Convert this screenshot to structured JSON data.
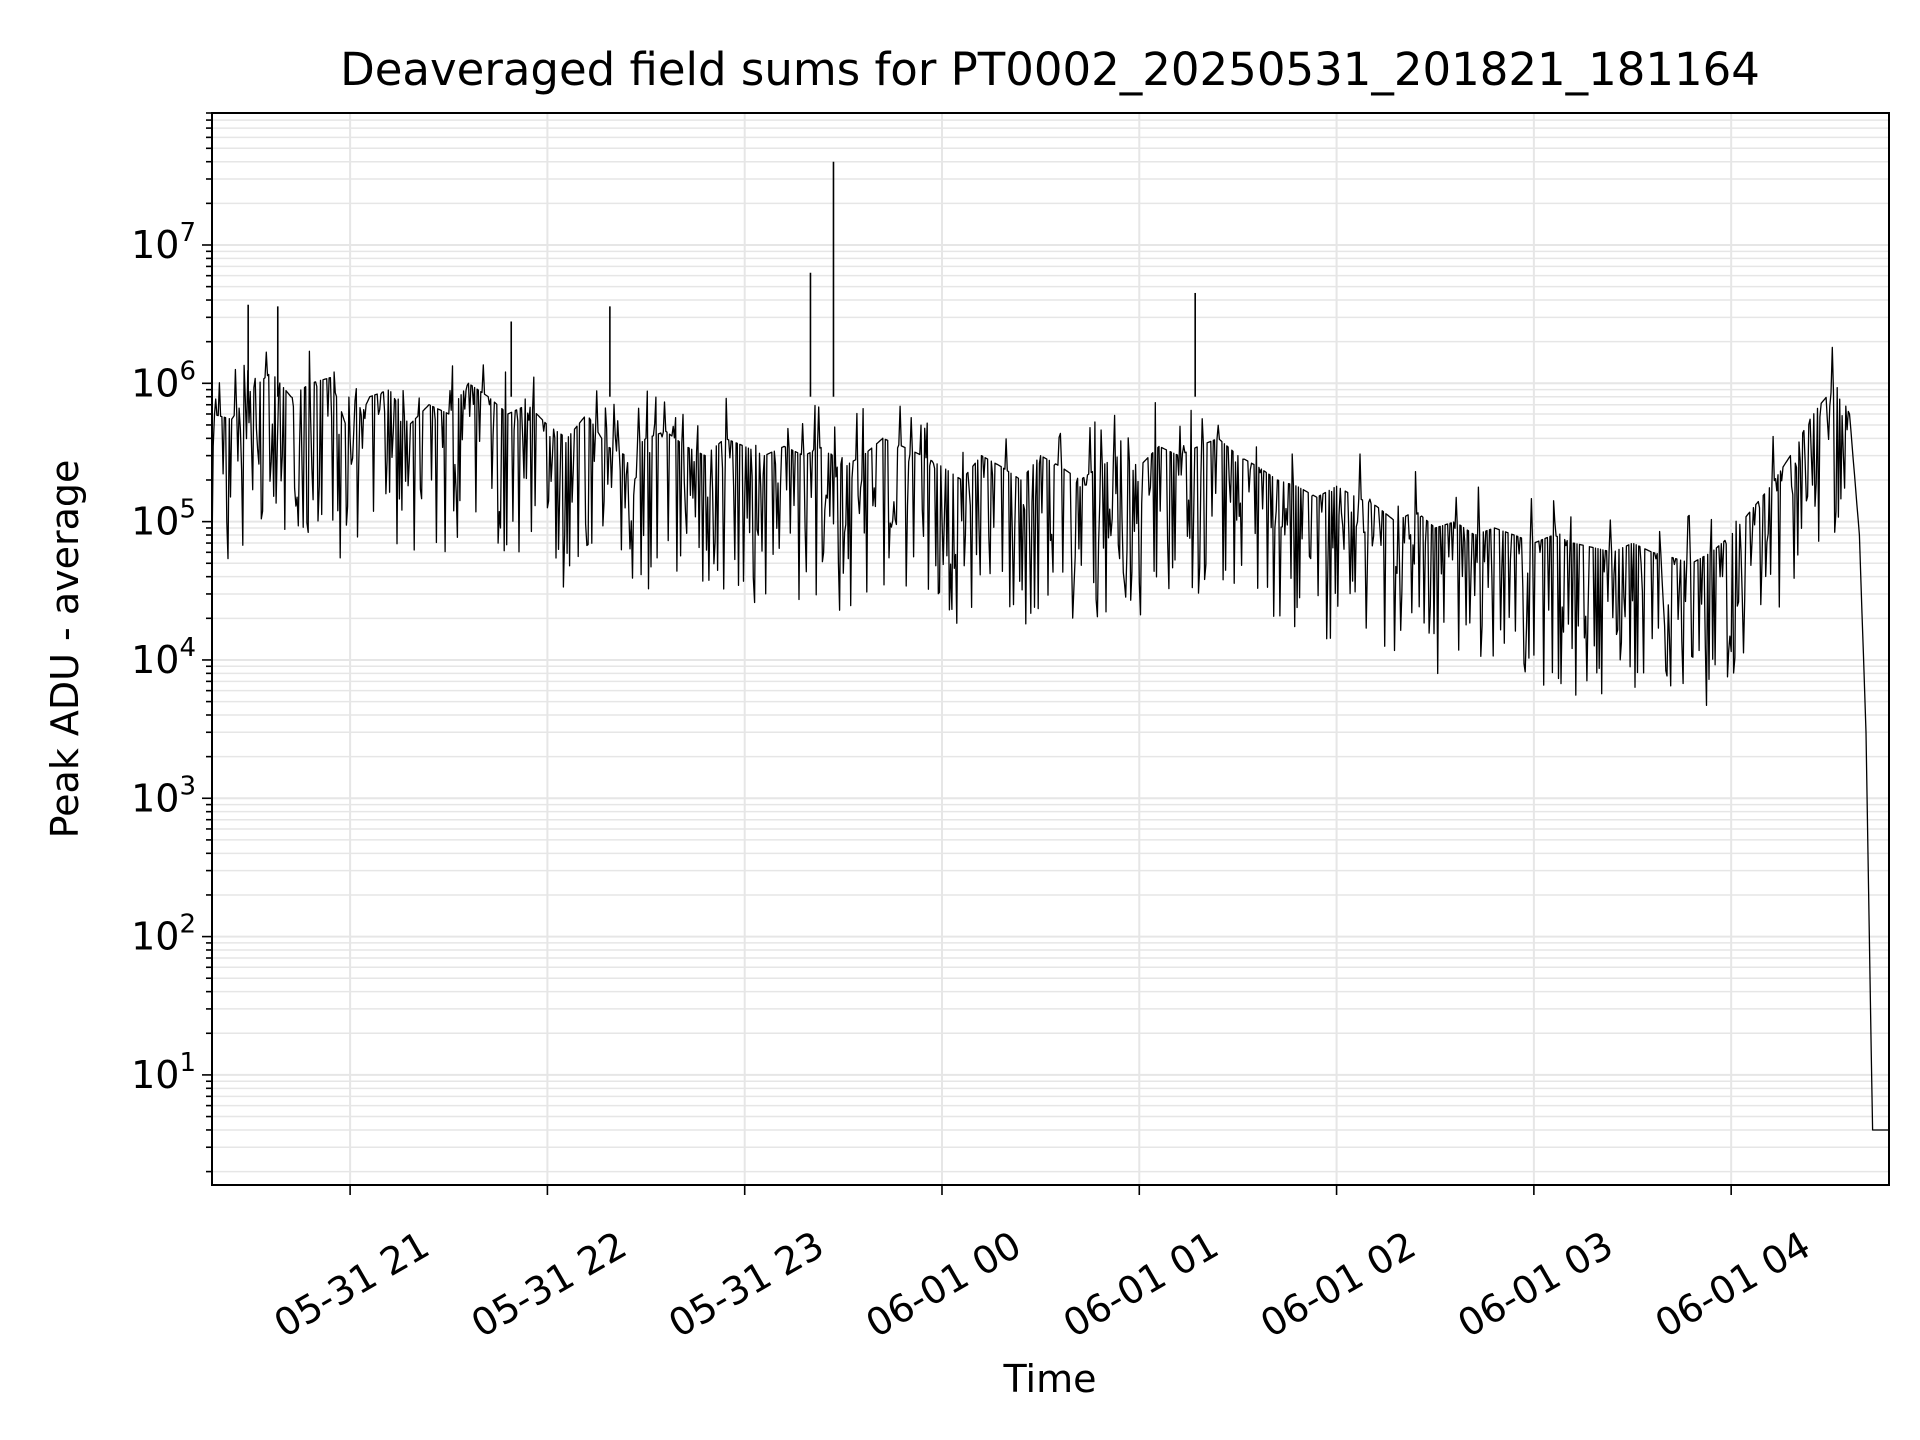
{
  "chart_data": {
    "type": "line",
    "title": "Deaveraged field sums for PT0002_20250531_201821_181164",
    "xlabel": "Time",
    "ylabel": "Peak ADU - average",
    "yscale": "log",
    "ylim": [
      1.6,
      90000000
    ],
    "xlim": [
      "2025-05-31 20:18",
      "2025-06-01 04:48"
    ],
    "grid": "on (major and minor)",
    "line_color": "#000000",
    "grid_color": "#e6e6e6",
    "x_ticks": [
      {
        "value": "2025-05-31 21:00",
        "label": "05-31 21"
      },
      {
        "value": "2025-05-31 22:00",
        "label": "05-31 22"
      },
      {
        "value": "2025-05-31 23:00",
        "label": "05-31 23"
      },
      {
        "value": "2025-06-01 00:00",
        "label": "06-01 00"
      },
      {
        "value": "2025-06-01 01:00",
        "label": "06-01 01"
      },
      {
        "value": "2025-06-01 02:00",
        "label": "06-01 02"
      },
      {
        "value": "2025-06-01 03:00",
        "label": "06-01 03"
      },
      {
        "value": "2025-06-01 04:00",
        "label": "06-01 04"
      }
    ],
    "y_ticks": [
      {
        "value": 10,
        "base": "10",
        "exp": "1"
      },
      {
        "value": 100,
        "base": "10",
        "exp": "2"
      },
      {
        "value": 1000,
        "base": "10",
        "exp": "3"
      },
      {
        "value": 10000,
        "base": "10",
        "exp": "4"
      },
      {
        "value": 100000,
        "base": "10",
        "exp": "5"
      },
      {
        "value": 1000000,
        "base": "10",
        "exp": "6"
      },
      {
        "value": 10000000,
        "base": "10",
        "exp": "7"
      }
    ],
    "series": [
      {
        "x": [
          "2025-05-31 20:18",
          "2025-05-31 20:24",
          "2025-05-31 20:30",
          "2025-05-31 20:36",
          "2025-05-31 20:42",
          "2025-05-31 20:48",
          "2025-05-31 20:54",
          "2025-05-31 21:00",
          "2025-05-31 21:06",
          "2025-05-31 21:12",
          "2025-05-31 21:18",
          "2025-05-31 21:24",
          "2025-05-31 21:30",
          "2025-05-31 21:36",
          "2025-05-31 21:42",
          "2025-05-31 21:48",
          "2025-05-31 21:54",
          "2025-05-31 22:00",
          "2025-05-31 22:06",
          "2025-05-31 22:12",
          "2025-05-31 22:18",
          "2025-05-31 22:24",
          "2025-05-31 22:30",
          "2025-05-31 22:36",
          "2025-05-31 22:42",
          "2025-05-31 22:48",
          "2025-05-31 22:54",
          "2025-05-31 23:00",
          "2025-05-31 23:06",
          "2025-05-31 23:12",
          "2025-05-31 23:18",
          "2025-05-31 23:24",
          "2025-05-31 23:30",
          "2025-05-31 23:36",
          "2025-05-31 23:42",
          "2025-05-31 23:48",
          "2025-05-31 23:54",
          "2025-06-01 00:00",
          "2025-06-01 00:06",
          "2025-06-01 00:12",
          "2025-06-01 00:18",
          "2025-06-01 00:24",
          "2025-06-01 00:30",
          "2025-06-01 00:36",
          "2025-06-01 00:42",
          "2025-06-01 00:48",
          "2025-06-01 00:54",
          "2025-06-01 01:00",
          "2025-06-01 01:06",
          "2025-06-01 01:12",
          "2025-06-01 01:18",
          "2025-06-01 01:24",
          "2025-06-01 01:30",
          "2025-06-01 01:36",
          "2025-06-01 01:42",
          "2025-06-01 01:48",
          "2025-06-01 01:54",
          "2025-06-01 02:00",
          "2025-06-01 02:06",
          "2025-06-01 02:12",
          "2025-06-01 02:18",
          "2025-06-01 02:24",
          "2025-06-01 02:30",
          "2025-06-01 02:36",
          "2025-06-01 02:42",
          "2025-06-01 02:48",
          "2025-06-01 02:54",
          "2025-06-01 03:00",
          "2025-06-01 03:06",
          "2025-06-01 03:12",
          "2025-06-01 03:18",
          "2025-06-01 03:24",
          "2025-06-01 03:30",
          "2025-06-01 03:36",
          "2025-06-01 03:42",
          "2025-06-01 03:48",
          "2025-06-01 03:54",
          "2025-06-01 04:00",
          "2025-06-01 04:06",
          "2025-06-01 04:12",
          "2025-06-01 04:18",
          "2025-06-01 04:24",
          "2025-06-01 04:27",
          "2025-06-01 04:30",
          "2025-06-01 04:33",
          "2025-06-01 04:36",
          "2025-06-01 04:39",
          "2025-06-01 04:41",
          "2025-06-01 04:43",
          "2025-06-01 04:44",
          "2025-06-01 04:48"
        ],
        "y": [
          600000,
          550000,
          900000,
          1200000,
          800000,
          1000000,
          1100000,
          400000,
          800000,
          900000,
          500000,
          700000,
          600000,
          1000000,
          800000,
          600000,
          700000,
          500000,
          400000,
          600000,
          350000,
          300000,
          400000,
          450000,
          350000,
          300000,
          400000,
          350000,
          300000,
          350000,
          300000,
          350000,
          250000,
          300000,
          400000,
          350000,
          300000,
          250000,
          200000,
          300000,
          250000,
          200000,
          300000,
          250000,
          200000,
          250000,
          300000,
          250000,
          350000,
          300000,
          350000,
          400000,
          300000,
          250000,
          200000,
          180000,
          150000,
          180000,
          150000,
          130000,
          100000,
          120000,
          90000,
          100000,
          80000,
          90000,
          80000,
          70000,
          80000,
          70000,
          65000,
          60000,
          70000,
          60000,
          55000,
          50000,
          60000,
          80000,
          120000,
          180000,
          300000,
          550000,
          700000,
          850000,
          850000,
          600000,
          80000,
          3000,
          4,
          4,
          4
        ],
        "spikes": [
          {
            "x": "2025-05-31 20:29",
            "y": 3700000
          },
          {
            "x": "2025-05-31 20:38",
            "y": 3600000
          },
          {
            "x": "2025-05-31 21:49",
            "y": 2800000
          },
          {
            "x": "2025-05-31 22:19",
            "y": 3600000
          },
          {
            "x": "2025-05-31 23:20",
            "y": 6300000
          },
          {
            "x": "2025-05-31 23:27",
            "y": 40000000
          },
          {
            "x": "2025-06-01 01:17",
            "y": 4500000
          }
        ]
      }
    ]
  }
}
